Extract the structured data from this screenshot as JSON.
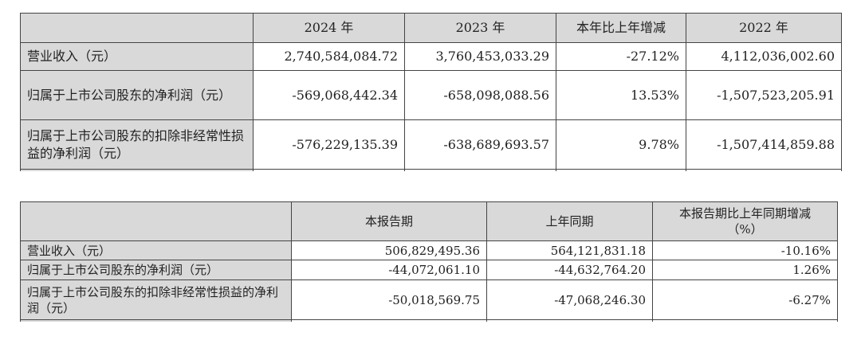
{
  "annual_table": {
    "headers": [
      "",
      "2024 年",
      "2023 年",
      "本年比上年增减",
      "2022 年"
    ],
    "rows": [
      {
        "label": "营业收入（元）",
        "values": [
          "2,740,584,084.72",
          "3,760,453,033.29",
          "-27.12%",
          "4,112,036,002.60"
        ]
      },
      {
        "label": "归属于上市公司股东的净利润（元）",
        "values": [
          "-569,068,442.34",
          "-658,098,088.56",
          "13.53%",
          "-1,507,523,205.91"
        ]
      },
      {
        "label": "归属于上市公司股东的扣除非经常性损益的净利润（元）",
        "values": [
          "-576,229,135.39",
          "-638,689,693.57",
          "9.78%",
          "-1,507,414,859.88"
        ]
      }
    ]
  },
  "quarter_table": {
    "headers": [
      "",
      "本报告期",
      "上年同期",
      "本报告期比上年同期增减（%）"
    ],
    "rows": [
      {
        "label": "营业收入（元）",
        "values": [
          "506,829,495.36",
          "564,121,831.18",
          "-10.16%"
        ]
      },
      {
        "label": "归属于上市公司股东的净利润（元）",
        "values": [
          "-44,072,061.10",
          "-44,632,764.20",
          "1.26%"
        ]
      },
      {
        "label": "归属于上市公司股东的扣除非经常性损益的净利润（元）",
        "values": [
          "-50,018,569.75",
          "-47,068,246.30",
          "-6.27%"
        ]
      }
    ]
  }
}
